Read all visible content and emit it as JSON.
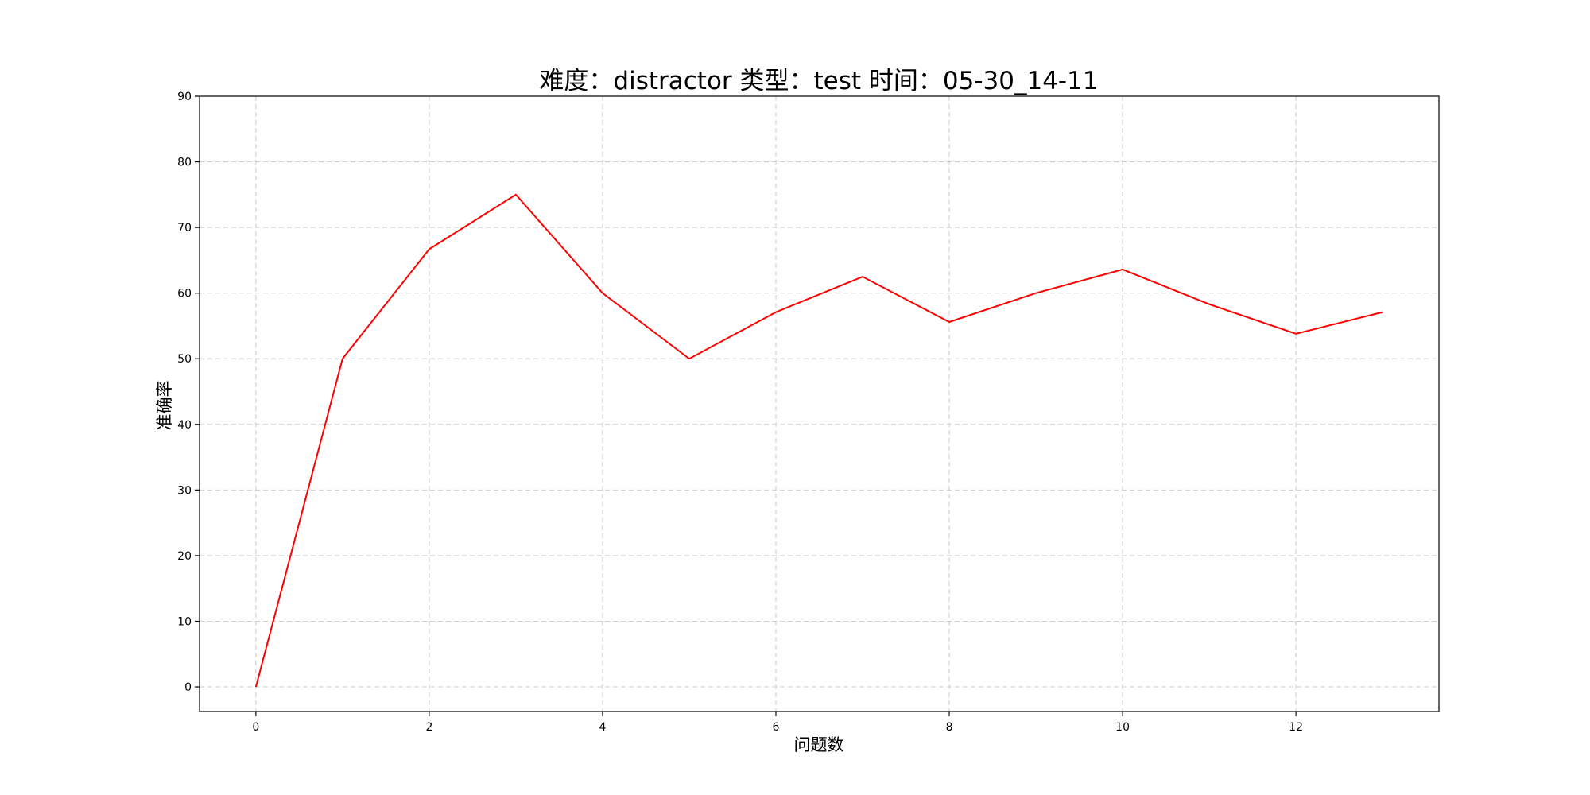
{
  "chart_data": {
    "type": "line",
    "title": "难度：distractor 类型：test 时间：05-30_14-11",
    "xlabel": "问题数",
    "ylabel": "准确率",
    "xlim": [
      -0.65,
      13.65
    ],
    "ylim": [
      -3.75,
      90
    ],
    "xticks": [
      0,
      2,
      4,
      6,
      8,
      10,
      12
    ],
    "yticks": [
      0,
      10,
      20,
      30,
      40,
      50,
      60,
      70,
      80,
      90
    ],
    "grid": true,
    "grid_style": "dashed",
    "series": [
      {
        "color": "#ff0000",
        "x": [
          0,
          1,
          2,
          3,
          4,
          5,
          6,
          7,
          8,
          9,
          10,
          11,
          12,
          13
        ],
        "values": [
          0,
          50,
          66.7,
          75,
          60,
          50,
          57.1,
          62.5,
          55.6,
          60,
          63.6,
          58.3,
          53.8,
          57.1
        ]
      }
    ]
  }
}
